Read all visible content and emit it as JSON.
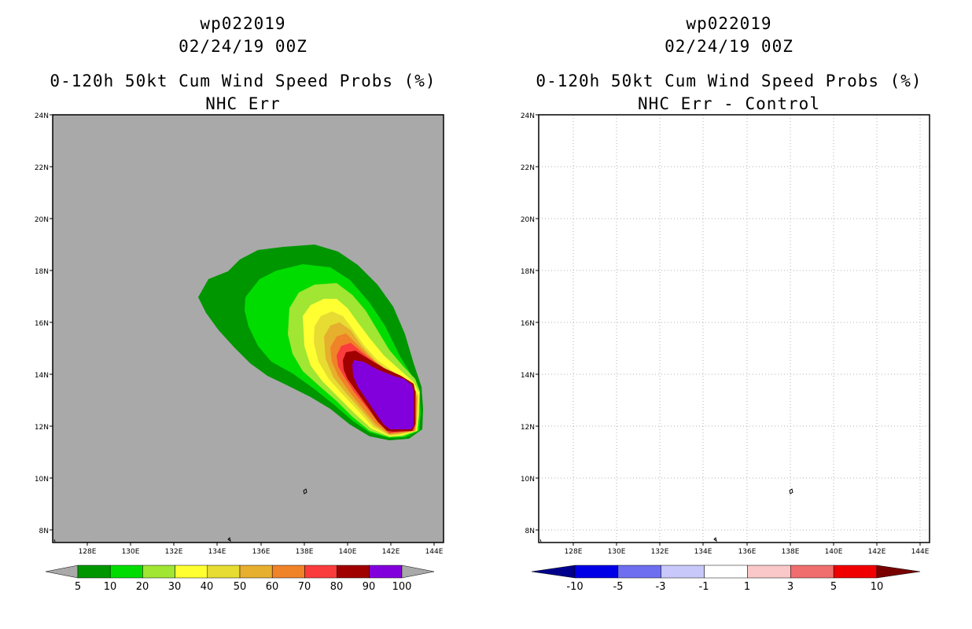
{
  "left_panel": {
    "title_storm": "wp022019",
    "title_date": "02/24/19 00Z",
    "title_product": "0-120h 50kt Cum Wind Speed Probs (%)",
    "title_sub": "NHC Err",
    "y_labels": [
      "24N",
      "22N",
      "20N",
      "18N",
      "16N",
      "14N",
      "12N",
      "10N",
      "8N"
    ],
    "x_labels": [
      "128E",
      "130E",
      "132E",
      "134E",
      "136E",
      "138E",
      "140E",
      "142E",
      "144E"
    ],
    "colorbar": {
      "labels": [
        "5",
        "10",
        "20",
        "30",
        "40",
        "50",
        "60",
        "70",
        "80",
        "90",
        "100"
      ],
      "colors": [
        "#009600",
        "#00dc00",
        "#a0e632",
        "#ffff32",
        "#e6dc32",
        "#e6af2d",
        "#f08228",
        "#fa3c3c",
        "#a00000",
        "#8200dc"
      ],
      "left_extend_color": "#a9a9a9",
      "right_extend_color": "#a9a9a9"
    },
    "map_background": "#a9a9a9"
  },
  "right_panel": {
    "title_storm": "wp022019",
    "title_date": "02/24/19 00Z",
    "title_product": "0-120h 50kt Cum Wind Speed Probs (%)",
    "title_sub": "NHC Err - Control",
    "y_labels": [
      "24N",
      "22N",
      "20N",
      "18N",
      "16N",
      "14N",
      "12N",
      "10N",
      "8N"
    ],
    "x_labels": [
      "128E",
      "130E",
      "132E",
      "134E",
      "136E",
      "138E",
      "140E",
      "142E",
      "144E"
    ],
    "colorbar": {
      "labels": [
        "-10",
        "-5",
        "-3",
        "-1",
        "1",
        "3",
        "5",
        "10"
      ],
      "colors": [
        "#0000e6",
        "#6e6ef0",
        "#c8c8fa",
        "#ffffff",
        "#fac8c8",
        "#f06e6e",
        "#f00000"
      ],
      "left_extend_color": "#00008c",
      "right_extend_color": "#780000"
    },
    "map_background": "#ffffff"
  }
}
